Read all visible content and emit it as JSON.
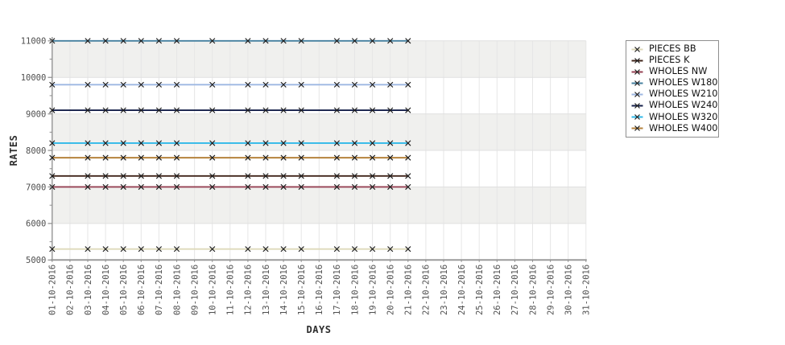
{
  "chart_data": {
    "type": "line",
    "title": "",
    "xlabel": "DAYS",
    "ylabel": "RATES",
    "x_categories": [
      "01-10-2016",
      "02-10-2016",
      "03-10-2016",
      "04-10-2016",
      "05-10-2016",
      "06-10-2016",
      "07-10-2016",
      "08-10-2016",
      "09-10-2016",
      "10-10-2016",
      "11-10-2016",
      "12-10-2016",
      "13-10-2016",
      "14-10-2016",
      "15-10-2016",
      "16-10-2016",
      "17-10-2016",
      "18-10-2016",
      "19-10-2016",
      "20-10-2016",
      "21-10-2016",
      "22-10-2016",
      "23-10-2016",
      "24-10-2016",
      "25-10-2016",
      "26-10-2016",
      "27-10-2016",
      "28-10-2016",
      "29-10-2016",
      "30-10-2016",
      "31-10-2016"
    ],
    "data_day_indices": [
      0,
      2,
      3,
      4,
      5,
      6,
      7,
      9,
      11,
      12,
      13,
      14,
      16,
      17,
      18,
      19,
      20
    ],
    "ylim": [
      5000,
      11000
    ],
    "y_major_ticks": [
      5000,
      6000,
      7000,
      8000,
      9000,
      10000,
      11000
    ],
    "y_minor_step": 500,
    "grid": true,
    "band_color": "#f0f0ee",
    "vgrid_color": "#e6e6e6",
    "hgrid_color": "#e0e0e0",
    "marker": "x",
    "marker_color": "#1a1a1a",
    "legend_position": "right",
    "series": [
      {
        "name": "PIECES BB",
        "color": "#ded9ba",
        "value": 5300
      },
      {
        "name": "PIECES K",
        "color": "#40251a",
        "value": 7300
      },
      {
        "name": "WHOLES NW",
        "color": "#964153",
        "value": 7000
      },
      {
        "name": "WHOLES W180",
        "color": "#45809f",
        "value": 11000
      },
      {
        "name": "WHOLES W210",
        "color": "#9db7e2",
        "value": 9800
      },
      {
        "name": "WHOLES W240",
        "color": "#141f49",
        "value": 9100
      },
      {
        "name": "WHOLES W320",
        "color": "#2fb8e8",
        "value": 8200
      },
      {
        "name": "WHOLES W400",
        "color": "#b5823c",
        "value": 7800
      }
    ]
  }
}
